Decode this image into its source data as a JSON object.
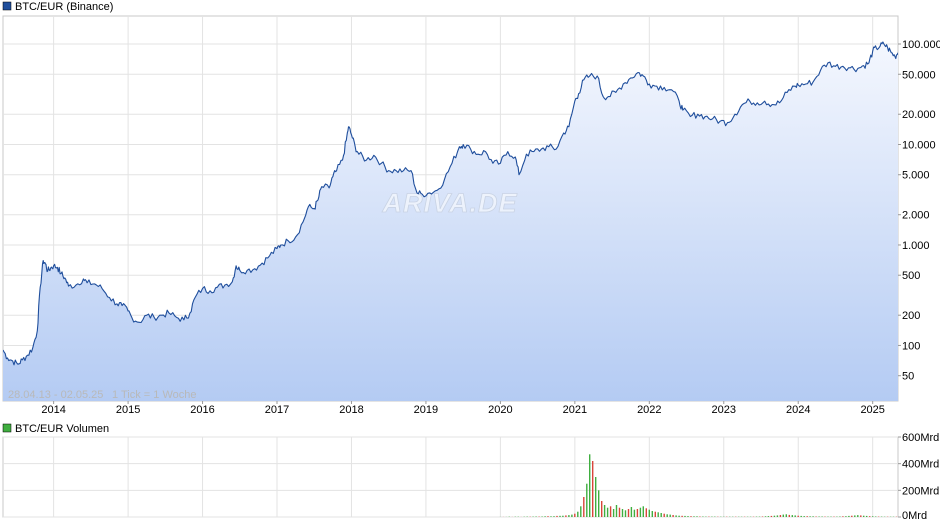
{
  "colors": {
    "price_line": "#1f4e9c",
    "area_top": "#f4f7fe",
    "area_bottom": "#b4cbf3",
    "grid": "#e3e3e3",
    "frame": "#c8c8c8",
    "legend_price": "#1f4e9c",
    "legend_volume": "#3fae3f",
    "volume_up": "#3fae3f",
    "volume_down": "#d9453b"
  },
  "watermark": "ARIVA.DE",
  "chart_data": [
    {
      "type": "line",
      "title": "BTC/EUR (Binance)",
      "yscale": "log",
      "range_label": "28.04.13 - 02.05.25",
      "tick_note": "1 Tick = 1 Woche",
      "x_ticks": [
        "2014",
        "2015",
        "2016",
        "2017",
        "2018",
        "2019",
        "2020",
        "2021",
        "2022",
        "2023",
        "2024",
        "2025"
      ],
      "y_ticks": [
        {
          "value": 50,
          "label": "50"
        },
        {
          "value": 100,
          "label": "100"
        },
        {
          "value": 200,
          "label": "200"
        },
        {
          "value": 500,
          "label": "500"
        },
        {
          "value": 1000,
          "label": "1.000"
        },
        {
          "value": 2000,
          "label": "2.000"
        },
        {
          "value": 5000,
          "label": "5.000"
        },
        {
          "value": 10000,
          "label": "10.000"
        },
        {
          "value": 20000,
          "label": "20.000"
        },
        {
          "value": 50000,
          "label": "50.000"
        },
        {
          "value": 100000,
          "label": "100.000"
        }
      ],
      "ylim": [
        28,
        190000
      ],
      "xlim": [
        2013.32,
        2025.34
      ],
      "series": [
        {
          "name": "BTC/EUR",
          "x": [
            2013.32,
            2013.38,
            2013.45,
            2013.52,
            2013.58,
            2013.65,
            2013.72,
            2013.78,
            2013.82,
            2013.86,
            2013.89,
            2013.92,
            2013.96,
            2014.0,
            2014.05,
            2014.1,
            2014.15,
            2014.2,
            2014.3,
            2014.4,
            2014.45,
            2014.55,
            2014.65,
            2014.75,
            2014.85,
            2014.92,
            2015.0,
            2015.05,
            2015.15,
            2015.25,
            2015.35,
            2015.45,
            2015.55,
            2015.65,
            2015.75,
            2015.83,
            2015.9,
            2016.0,
            2016.1,
            2016.2,
            2016.3,
            2016.4,
            2016.45,
            2016.5,
            2016.6,
            2016.7,
            2016.8,
            2016.9,
            2017.0,
            2017.05,
            2017.15,
            2017.25,
            2017.35,
            2017.42,
            2017.5,
            2017.55,
            2017.6,
            2017.7,
            2017.75,
            2017.8,
            2017.88,
            2017.93,
            2017.96,
            2018.0,
            2018.05,
            2018.1,
            2018.2,
            2018.3,
            2018.4,
            2018.5,
            2018.6,
            2018.7,
            2018.8,
            2018.88,
            2018.95,
            2019.05,
            2019.15,
            2019.25,
            2019.35,
            2019.45,
            2019.5,
            2019.6,
            2019.7,
            2019.8,
            2019.9,
            2020.0,
            2020.1,
            2020.2,
            2020.25,
            2020.35,
            2020.45,
            2020.55,
            2020.65,
            2020.75,
            2020.85,
            2020.92,
            2021.0,
            2021.05,
            2021.12,
            2021.2,
            2021.3,
            2021.38,
            2021.45,
            2021.55,
            2021.65,
            2021.75,
            2021.85,
            2021.92,
            2022.0,
            2022.1,
            2022.2,
            2022.3,
            2022.4,
            2022.45,
            2022.55,
            2022.65,
            2022.75,
            2022.85,
            2022.95,
            2023.05,
            2023.15,
            2023.25,
            2023.35,
            2023.45,
            2023.55,
            2023.65,
            2023.75,
            2023.85,
            2023.95,
            2024.0,
            2024.1,
            2024.2,
            2024.3,
            2024.4,
            2024.5,
            2024.6,
            2024.7,
            2024.8,
            2024.88,
            2024.95,
            2025.0,
            2025.05,
            2025.1,
            2025.15,
            2025.2,
            2025.25,
            2025.3,
            2025.34
          ],
          "values": [
            90,
            75,
            70,
            65,
            72,
            80,
            95,
            140,
            380,
            700,
            650,
            550,
            590,
            620,
            600,
            520,
            470,
            390,
            400,
            460,
            420,
            410,
            370,
            300,
            260,
            250,
            220,
            190,
            170,
            200,
            190,
            200,
            210,
            190,
            180,
            210,
            300,
            370,
            350,
            380,
            400,
            430,
            620,
            560,
            560,
            580,
            660,
            780,
            920,
            1000,
            1100,
            1200,
            1700,
            2400,
            2300,
            2800,
            3800,
            3700,
            4800,
            5500,
            7000,
            11000,
            15000,
            12500,
            9500,
            8000,
            7000,
            7800,
            6500,
            5500,
            5500,
            5500,
            5500,
            3300,
            3200,
            3300,
            3500,
            4500,
            6500,
            9500,
            10000,
            9000,
            8000,
            8500,
            6500,
            6500,
            8500,
            7500,
            5000,
            8000,
            8500,
            9000,
            9500,
            9000,
            13000,
            15000,
            27000,
            32000,
            44000,
            48000,
            48000,
            30000,
            30000,
            33000,
            40000,
            46000,
            52000,
            48000,
            40000,
            38000,
            37000,
            35000,
            27000,
            22000,
            19000,
            20000,
            19000,
            18000,
            17000,
            16500,
            20000,
            25000,
            27000,
            26000,
            27000,
            25000,
            26000,
            33000,
            38000,
            39000,
            40000,
            42000,
            55000,
            65000,
            60000,
            60000,
            58000,
            57000,
            61000,
            65000,
            85000,
            91000,
            95000,
            100000,
            92000,
            82000,
            75000,
            82000
          ],
          "color": "#1f4e9c"
        }
      ]
    },
    {
      "type": "bar",
      "title": "BTC/EUR Volumen",
      "ylim": [
        0,
        600
      ],
      "y_ticks": [
        {
          "value": 0,
          "label": "0Mrd"
        },
        {
          "value": 200,
          "label": "200Mrd"
        },
        {
          "value": 400,
          "label": "400Mrd"
        },
        {
          "value": 600,
          "label": "600Mrd"
        }
      ],
      "x_start": 2020.0,
      "x_step": 0.04,
      "values": [
        1,
        1,
        1,
        2,
        1,
        2,
        2,
        1,
        2,
        3,
        2,
        3,
        4,
        3,
        4,
        5,
        6,
        5,
        6,
        8,
        9,
        10,
        12,
        14,
        18,
        25,
        40,
        80,
        150,
        250,
        470,
        420,
        300,
        200,
        120,
        90,
        70,
        80,
        60,
        90,
        70,
        60,
        50,
        60,
        75,
        55,
        60,
        70,
        80,
        65,
        55,
        45,
        40,
        35,
        30,
        25,
        20,
        18,
        15,
        12,
        10,
        9,
        8,
        7,
        6,
        5,
        5,
        4,
        4,
        3,
        3,
        3,
        3,
        2,
        2,
        2,
        2,
        2,
        2,
        2,
        2,
        2,
        2,
        2,
        2,
        2,
        3,
        3,
        4,
        5,
        7,
        8,
        10,
        12,
        15,
        18,
        20,
        16,
        14,
        12,
        10,
        8,
        7,
        6,
        5,
        5,
        4,
        4,
        4,
        3,
        3,
        3,
        3,
        3,
        4,
        5,
        6,
        8,
        10,
        12,
        14,
        12,
        10,
        8,
        6,
        5,
        4,
        3,
        3,
        2,
        2,
        2,
        2,
        2,
        2,
        2,
        2,
        2,
        2,
        2,
        2,
        2,
        2,
        2,
        2,
        3,
        3,
        4,
        5,
        6,
        8,
        10,
        12,
        14,
        10,
        12,
        15,
        20,
        12,
        10
      ],
      "colors_by_sign": [
        "#3fae3f",
        "#d9453b"
      ]
    }
  ]
}
